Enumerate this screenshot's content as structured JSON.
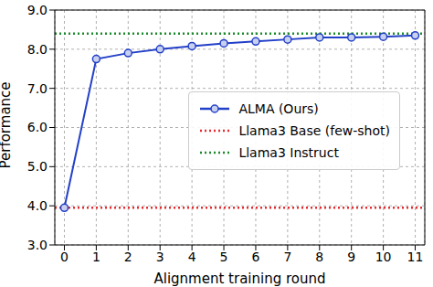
{
  "chart_data": {
    "type": "line",
    "x_label": "Alignment training round",
    "y_label": "Performance",
    "x": [
      0,
      1,
      2,
      3,
      4,
      5,
      6,
      7,
      8,
      9,
      10,
      11
    ],
    "xlim": [
      -0.3,
      11.3
    ],
    "xticks": [
      0,
      1,
      2,
      3,
      4,
      5,
      6,
      7,
      8,
      9,
      10,
      11
    ],
    "ylim": [
      3,
      9
    ],
    "yticks": [
      {
        "value": 3,
        "label": "3.0"
      },
      {
        "value": 4,
        "label": "4.0"
      },
      {
        "value": 5,
        "label": "5.0"
      },
      {
        "value": 6,
        "label": "6.0"
      },
      {
        "value": 7,
        "label": "7.0"
      },
      {
        "value": 8,
        "label": "8.0"
      },
      {
        "value": 9,
        "label": "9.0"
      }
    ],
    "grid": true,
    "legend": "right",
    "series": [
      {
        "name": "ALMA (Ours)",
        "type": "line",
        "color": "#2340c8",
        "marker": "circle",
        "line_style": "solid",
        "values": [
          3.95,
          7.75,
          7.9,
          8.0,
          8.08,
          8.15,
          8.2,
          8.25,
          8.3,
          8.3,
          8.32,
          8.35
        ]
      },
      {
        "name": "Llama3 Base (few-shot)",
        "type": "hline",
        "color": "#e8282b",
        "line_style": "dotted",
        "value": 3.95
      },
      {
        "name": "Llama3 Instruct",
        "type": "hline",
        "color": "#1a8a2a",
        "line_style": "dotted",
        "value": 8.4
      }
    ]
  }
}
